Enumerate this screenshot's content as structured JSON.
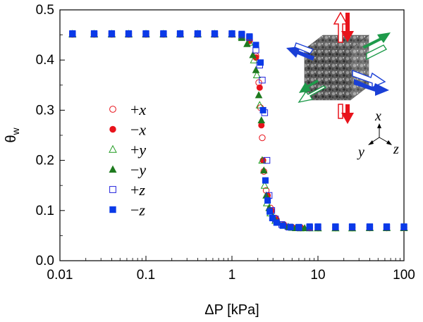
{
  "chart_data": {
    "type": "scatter",
    "xlabel": "ΔP [kPa]",
    "ylabel_main": "θ",
    "ylabel_sub": "w",
    "xscale": "log",
    "xlim": [
      0.01,
      100
    ],
    "ylim": [
      0,
      0.5
    ],
    "xticks": [
      {
        "value": 0.01,
        "label": "0.01"
      },
      {
        "value": 0.1,
        "label": "0.1"
      },
      {
        "value": 1,
        "label": "1"
      },
      {
        "value": 10,
        "label": "10"
      },
      {
        "value": 100,
        "label": "100"
      }
    ],
    "yticks": [
      {
        "value": 0,
        "label": "0.0"
      },
      {
        "value": 0.1,
        "label": "0.1"
      },
      {
        "value": 0.2,
        "label": "0.2"
      },
      {
        "value": 0.3,
        "label": "0.3"
      },
      {
        "value": 0.4,
        "label": "0.4"
      },
      {
        "value": 0.5,
        "label": "0.5"
      }
    ],
    "legend_position": "center-left",
    "series": [
      {
        "sign": "+",
        "var": "x",
        "marker": "circle",
        "filled": false,
        "color": "#e8131b",
        "x": [
          0.014,
          0.025,
          0.04,
          0.063,
          0.1,
          0.16,
          0.25,
          0.4,
          0.63,
          1.0,
          1.3,
          1.6,
          1.9,
          2.05,
          2.15,
          2.25,
          2.35,
          2.5,
          2.8,
          3.2,
          4,
          5,
          6.3,
          8,
          10,
          16,
          25,
          40,
          63,
          100
        ],
        "y": [
          0.452,
          0.452,
          0.452,
          0.452,
          0.452,
          0.452,
          0.452,
          0.452,
          0.452,
          0.452,
          0.449,
          0.44,
          0.408,
          0.355,
          0.305,
          0.245,
          0.178,
          0.14,
          0.105,
          0.085,
          0.072,
          0.067,
          0.066,
          0.066,
          0.066,
          0.066,
          0.066,
          0.066,
          0.066,
          0.066
        ]
      },
      {
        "sign": "−",
        "var": "x",
        "marker": "circle",
        "filled": true,
        "color": "#e8131b",
        "x": [
          0.014,
          0.025,
          0.04,
          0.063,
          0.1,
          0.16,
          0.25,
          0.4,
          0.63,
          1.0,
          1.3,
          1.6,
          1.9,
          2.1,
          2.2,
          2.3,
          2.45,
          2.6,
          2.9,
          3.3,
          4,
          5,
          6.3,
          8,
          10,
          16,
          25,
          40,
          63,
          100
        ],
        "y": [
          0.451,
          0.451,
          0.451,
          0.451,
          0.451,
          0.451,
          0.451,
          0.451,
          0.451,
          0.451,
          0.448,
          0.438,
          0.405,
          0.345,
          0.27,
          0.2,
          0.16,
          0.13,
          0.1,
          0.082,
          0.071,
          0.066,
          0.065,
          0.065,
          0.065,
          0.065,
          0.065,
          0.065,
          0.065,
          0.065
        ]
      },
      {
        "sign": "+",
        "var": "y",
        "marker": "triangle",
        "filled": false,
        "color": "#1e9a1e",
        "x": [
          0.014,
          0.025,
          0.04,
          0.063,
          0.1,
          0.16,
          0.25,
          0.4,
          0.63,
          1.0,
          1.3,
          1.6,
          1.8,
          1.95,
          2.1,
          2.25,
          2.4,
          2.55,
          2.8,
          3.2,
          4,
          5,
          6.3,
          8,
          10,
          16,
          25,
          40,
          63,
          100
        ],
        "y": [
          0.452,
          0.452,
          0.452,
          0.452,
          0.452,
          0.452,
          0.452,
          0.452,
          0.452,
          0.452,
          0.447,
          0.435,
          0.4,
          0.37,
          0.31,
          0.2,
          0.15,
          0.115,
          0.095,
          0.08,
          0.07,
          0.066,
          0.065,
          0.065,
          0.065,
          0.065,
          0.065,
          0.066,
          0.066,
          0.066
        ]
      },
      {
        "sign": "−",
        "var": "y",
        "marker": "triangle",
        "filled": true,
        "color": "#1e7a1e",
        "x": [
          0.014,
          0.025,
          0.04,
          0.063,
          0.1,
          0.16,
          0.25,
          0.4,
          0.63,
          1.0,
          1.3,
          1.5,
          1.75,
          1.9,
          2.05,
          2.2,
          2.35,
          2.5,
          2.7,
          3.0,
          3.5,
          4.5,
          5.5,
          7,
          10,
          16,
          25,
          40,
          63,
          100
        ],
        "y": [
          0.451,
          0.451,
          0.451,
          0.451,
          0.451,
          0.451,
          0.451,
          0.451,
          0.451,
          0.451,
          0.444,
          0.432,
          0.41,
          0.38,
          0.33,
          0.28,
          0.18,
          0.13,
          0.105,
          0.088,
          0.076,
          0.068,
          0.065,
          0.065,
          0.065,
          0.065,
          0.065,
          0.065,
          0.065,
          0.065
        ]
      },
      {
        "sign": "+",
        "var": "z",
        "marker": "square",
        "filled": false,
        "color": "#2222dd",
        "x": [
          0.014,
          0.025,
          0.04,
          0.063,
          0.1,
          0.16,
          0.25,
          0.4,
          0.63,
          1.0,
          1.3,
          1.6,
          1.9,
          2.1,
          2.25,
          2.4,
          2.55,
          2.7,
          2.9,
          3.2,
          3.8,
          4.6,
          6,
          8,
          10,
          16,
          25,
          40,
          63,
          100
        ],
        "y": [
          0.452,
          0.452,
          0.452,
          0.452,
          0.452,
          0.452,
          0.452,
          0.452,
          0.452,
          0.452,
          0.45,
          0.445,
          0.42,
          0.39,
          0.36,
          0.295,
          0.2,
          0.13,
          0.1,
          0.083,
          0.072,
          0.067,
          0.066,
          0.066,
          0.067,
          0.067,
          0.067,
          0.067,
          0.067,
          0.067
        ]
      },
      {
        "sign": "−",
        "var": "z",
        "marker": "square",
        "filled": true,
        "color": "#0a3ae8",
        "x": [
          0.014,
          0.025,
          0.04,
          0.063,
          0.1,
          0.16,
          0.25,
          0.4,
          0.63,
          1.0,
          1.3,
          1.6,
          1.9,
          2.15,
          2.3,
          2.45,
          2.6,
          2.75,
          2.95,
          3.3,
          3.9,
          4.8,
          6,
          8,
          10,
          16,
          25,
          40,
          63,
          100
        ],
        "y": [
          0.453,
          0.453,
          0.453,
          0.453,
          0.453,
          0.453,
          0.453,
          0.453,
          0.453,
          0.453,
          0.452,
          0.447,
          0.43,
          0.395,
          0.3,
          0.16,
          0.12,
          0.098,
          0.085,
          0.076,
          0.07,
          0.067,
          0.067,
          0.068,
          0.068,
          0.068,
          0.068,
          0.068,
          0.068,
          0.068
        ]
      }
    ],
    "inset_axes": [
      "x",
      "y",
      "z"
    ]
  },
  "colors": {
    "red_arrow": "#e8131b",
    "green_arrow": "#1e9a4a",
    "blue_arrow": "#1a3fd6",
    "cube": "#6b6b6b"
  }
}
